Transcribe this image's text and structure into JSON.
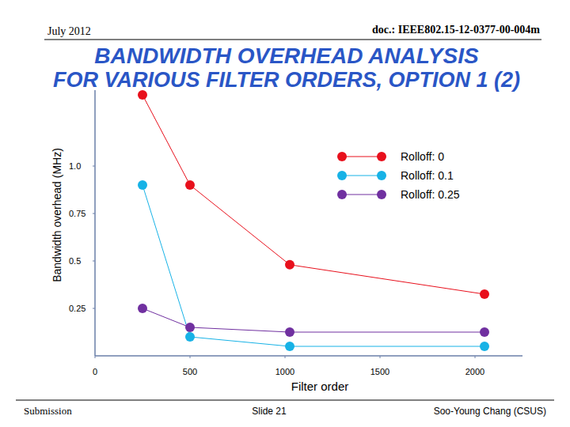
{
  "header": {
    "date": "July 2012",
    "doc": "doc.: IEEE802.15-12-0377-00-004m"
  },
  "footer": {
    "left": "Submission",
    "center": "Slide 21",
    "right": "Soo-Young Chang (CSUS)"
  },
  "chart_data": {
    "type": "line",
    "title": [
      "BANDWIDTH OVERHEAD ANALYSIS",
      "FOR VARIOUS FILTER ORDERS, OPTION 1 (2)"
    ],
    "x_label": "Filter order",
    "y_label": "Bandwidth overhead (MHz)",
    "x": [
      250,
      500,
      1025,
      2050
    ],
    "series": [
      {
        "name": "Rolloff: 0",
        "color": "#e8101c",
        "values": [
          1.375,
          0.9,
          0.48,
          0.325
        ]
      },
      {
        "name": "Rolloff: 0.1",
        "color": "#17b2e6",
        "values": [
          0.9,
          0.1,
          0.05,
          0.05
        ]
      },
      {
        "name": "Rolloff: 0.25",
        "color": "#7030a0",
        "values": [
          0.25,
          0.15,
          0.125,
          0.125
        ]
      }
    ],
    "xlim": [
      0,
      2250
    ],
    "xticks": [
      0,
      500,
      1000,
      1500,
      2000
    ],
    "ylim": [
      0,
      1.4
    ],
    "yticks": [
      0.25,
      0.5,
      0.75,
      {
        "value": 1,
        "label": "1.0"
      }
    ],
    "grid": false,
    "legend": "upper right",
    "marker": "circle",
    "line_style": "solid"
  }
}
